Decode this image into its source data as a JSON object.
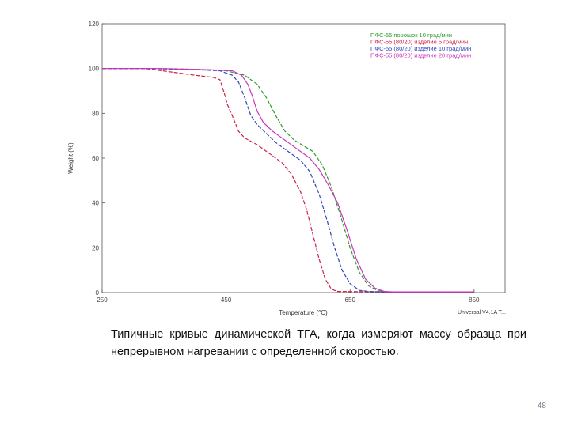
{
  "chart_data": {
    "type": "line",
    "title": "",
    "xlabel": "Temperature (°C)",
    "ylabel": "Weight (%)",
    "xlim": [
      250,
      900
    ],
    "ylim": [
      0,
      120
    ],
    "x_ticks": [
      250,
      450,
      650,
      850
    ],
    "x_tick_labels": [
      "250",
      "450",
      "650",
      "850"
    ],
    "y_ticks": [
      0,
      20,
      40,
      60,
      80,
      100,
      120
    ],
    "y_tick_labels": [
      "0",
      "20",
      "40",
      "60",
      "80",
      "100",
      "120"
    ],
    "grid": false,
    "legend_position": "top-right",
    "series": [
      {
        "name": "ПФС-55 порошок 10 град/мин",
        "color": "#2e9a2e",
        "dash": "5,2",
        "points": [
          [
            250,
            100
          ],
          [
            350,
            100
          ],
          [
            420,
            99.5
          ],
          [
            450,
            99
          ],
          [
            480,
            97
          ],
          [
            500,
            93
          ],
          [
            515,
            87
          ],
          [
            530,
            79
          ],
          [
            545,
            72
          ],
          [
            560,
            68
          ],
          [
            575,
            65.5
          ],
          [
            590,
            63
          ],
          [
            605,
            57
          ],
          [
            620,
            47
          ],
          [
            635,
            34
          ],
          [
            650,
            20
          ],
          [
            665,
            9
          ],
          [
            680,
            3
          ],
          [
            695,
            0.8
          ],
          [
            710,
            0.3
          ],
          [
            800,
            0.3
          ],
          [
            850,
            0.3
          ]
        ]
      },
      {
        "name": "ПФС-55 (80/20) изделие 5 град/мин",
        "color": "#cc2244",
        "dash": "5,2",
        "points": [
          [
            250,
            100
          ],
          [
            320,
            100
          ],
          [
            360,
            98.5
          ],
          [
            400,
            97
          ],
          [
            430,
            96
          ],
          [
            440,
            95
          ],
          [
            447,
            89
          ],
          [
            452,
            84
          ],
          [
            460,
            79
          ],
          [
            470,
            72
          ],
          [
            480,
            69
          ],
          [
            500,
            66
          ],
          [
            520,
            62
          ],
          [
            540,
            58
          ],
          [
            555,
            53
          ],
          [
            570,
            45
          ],
          [
            580,
            37
          ],
          [
            590,
            26
          ],
          [
            600,
            15
          ],
          [
            610,
            6
          ],
          [
            620,
            1.5
          ],
          [
            630,
            0.5
          ],
          [
            700,
            0.3
          ],
          [
            850,
            0.3
          ]
        ]
      },
      {
        "name": "ПФС-55 (80/20) изделие 10 град/мин",
        "color": "#3344bb",
        "dash": "5,2",
        "points": [
          [
            250,
            100
          ],
          [
            320,
            100
          ],
          [
            400,
            99.5
          ],
          [
            440,
            99
          ],
          [
            460,
            97
          ],
          [
            470,
            94
          ],
          [
            480,
            87
          ],
          [
            490,
            79
          ],
          [
            500,
            75
          ],
          [
            515,
            71
          ],
          [
            530,
            67
          ],
          [
            550,
            63
          ],
          [
            570,
            59
          ],
          [
            585,
            54
          ],
          [
            600,
            44
          ],
          [
            612,
            33
          ],
          [
            625,
            20
          ],
          [
            637,
            10
          ],
          [
            650,
            4
          ],
          [
            665,
            1
          ],
          [
            680,
            0.5
          ],
          [
            700,
            0.3
          ],
          [
            850,
            0.3
          ]
        ]
      },
      {
        "name": "ПФС-55 (80/20) изделие 20 град/мин",
        "color": "#cc33bb",
        "dash": "",
        "points": [
          [
            250,
            100
          ],
          [
            340,
            100
          ],
          [
            420,
            99.5
          ],
          [
            460,
            99
          ],
          [
            475,
            97
          ],
          [
            485,
            93
          ],
          [
            492,
            88
          ],
          [
            500,
            81
          ],
          [
            510,
            76
          ],
          [
            525,
            72
          ],
          [
            545,
            68
          ],
          [
            565,
            64
          ],
          [
            585,
            60
          ],
          [
            600,
            55
          ],
          [
            615,
            48
          ],
          [
            630,
            40
          ],
          [
            645,
            28
          ],
          [
            660,
            15
          ],
          [
            675,
            6
          ],
          [
            690,
            2
          ],
          [
            705,
            0.5
          ],
          [
            720,
            0.3
          ],
          [
            850,
            0.3
          ]
        ]
      }
    ],
    "footer_label": "Universal V4.1A T..."
  },
  "caption": "Типичные кривые динамической ТГА, когда измеряют массу образца при непрерывном нагревании с определенной скоростью.",
  "page_number": "48"
}
